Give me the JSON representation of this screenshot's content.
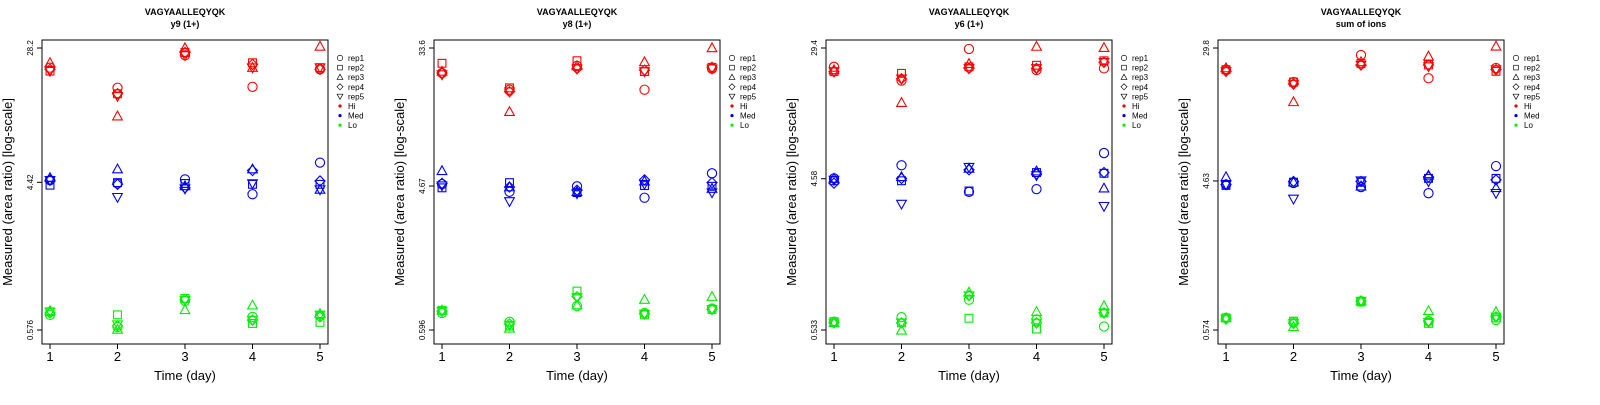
{
  "colors": {
    "Hi": "#ff0000",
    "Med": "#0000ff",
    "Lo": "#00ee00"
  },
  "shared": {
    "xlabel": "Time (day)",
    "ylabel": "Measured (area ratio) [log-scale]",
    "x_ticks": [
      "1",
      "2",
      "3",
      "4",
      "5"
    ],
    "legend": [
      {
        "label": "rep1",
        "symbol": "circle"
      },
      {
        "label": "rep2",
        "symbol": "square"
      },
      {
        "label": "rep3",
        "symbol": "triangle"
      },
      {
        "label": "rep4",
        "symbol": "diamond"
      },
      {
        "label": "rep5",
        "symbol": "triangle-down"
      },
      {
        "label": "Hi",
        "symbol": "dot",
        "color": "Hi"
      },
      {
        "label": "Med",
        "symbol": "dot",
        "color": "Med"
      },
      {
        "label": "Lo",
        "symbol": "dot",
        "color": "Lo"
      }
    ]
  },
  "chart_data": [
    {
      "type": "scatter",
      "title": "VAGYAALLEQYQK",
      "subtitle": "y9 (1+)",
      "xlabel": "Time (day)",
      "ylabel": "Measured (area ratio) [log-scale]",
      "log_scale_y": true,
      "ylim": [
        0.576,
        28.2
      ],
      "y_ticks": [
        "28.2",
        "4.42",
        "0.576"
      ],
      "xlim": [
        1,
        5
      ],
      "legend_position": "right",
      "series": [
        {
          "name": "rep1",
          "level": "Hi",
          "values": [
            21.5,
            16.3,
            25.5,
            16.5,
            21.0
          ]
        },
        {
          "name": "rep2",
          "level": "Hi",
          "values": [
            20.5,
            15.0,
            26.5,
            23.0,
            21.5
          ]
        },
        {
          "name": "rep3",
          "level": "Hi",
          "values": [
            23.0,
            11.0,
            28.2,
            21.5,
            28.8
          ]
        },
        {
          "name": "rep4",
          "level": "Hi",
          "values": [
            21.0,
            15.0,
            26.5,
            22.5,
            21.0
          ]
        },
        {
          "name": "rep5",
          "level": "Hi",
          "values": [
            20.5,
            14.5,
            25.5,
            21.5,
            21.5
          ]
        },
        {
          "name": "rep1",
          "level": "Med",
          "values": [
            4.55,
            4.35,
            4.6,
            3.75,
            5.8
          ]
        },
        {
          "name": "rep2",
          "level": "Med",
          "values": [
            4.25,
            4.4,
            4.35,
            4.3,
            4.3
          ]
        },
        {
          "name": "rep3",
          "level": "Med",
          "values": [
            4.7,
            5.3,
            4.2,
            5.3,
            4.0
          ]
        },
        {
          "name": "rep4",
          "level": "Med",
          "values": [
            4.55,
            4.3,
            4.1,
            5.2,
            4.5
          ]
        },
        {
          "name": "rep5",
          "level": "Med",
          "values": [
            4.55,
            3.6,
            4.05,
            4.35,
            4.0
          ]
        },
        {
          "name": "rep1",
          "level": "Lo",
          "values": [
            0.71,
            0.6,
            0.86,
            0.69,
            0.7
          ]
        },
        {
          "name": "rep2",
          "level": "Lo",
          "values": [
            0.74,
            0.71,
            0.89,
            0.63,
            0.64
          ]
        },
        {
          "name": "rep3",
          "level": "Lo",
          "values": [
            0.75,
            0.58,
            0.76,
            0.81,
            0.72
          ]
        },
        {
          "name": "rep4",
          "level": "Lo",
          "values": [
            0.73,
            0.61,
            0.88,
            0.66,
            0.69
          ]
        },
        {
          "name": "rep5",
          "level": "Lo",
          "values": [
            0.74,
            0.62,
            0.87,
            0.66,
            0.71
          ]
        }
      ]
    },
    {
      "type": "scatter",
      "title": "VAGYAALLEQYQK",
      "subtitle": "y8 (1+)",
      "xlabel": "Time (day)",
      "ylabel": "Measured (area ratio) [log-scale]",
      "log_scale_y": true,
      "ylim": [
        0.596,
        33.6
      ],
      "y_ticks": [
        "33.6",
        "4.67",
        "0.596"
      ],
      "xlim": [
        1,
        5
      ],
      "legend_position": "right",
      "series": [
        {
          "name": "rep1",
          "level": "Hi",
          "values": [
            23.5,
            18.5,
            26.0,
            18.5,
            25.0
          ]
        },
        {
          "name": "rep2",
          "level": "Hi",
          "values": [
            27.0,
            19.0,
            28.0,
            24.0,
            25.5
          ]
        },
        {
          "name": "rep3",
          "level": "Hi",
          "values": [
            24.0,
            13.5,
            26.0,
            27.5,
            33.6
          ]
        },
        {
          "name": "rep4",
          "level": "Hi",
          "values": [
            23.5,
            18.0,
            25.0,
            24.5,
            25.5
          ]
        },
        {
          "name": "rep5",
          "level": "Hi",
          "values": [
            23.0,
            18.0,
            25.0,
            24.0,
            25.0
          ]
        },
        {
          "name": "rep1",
          "level": "Med",
          "values": [
            4.8,
            4.3,
            4.65,
            3.95,
            5.6
          ]
        },
        {
          "name": "rep2",
          "level": "Med",
          "values": [
            4.55,
            4.9,
            4.25,
            4.7,
            4.65
          ]
        },
        {
          "name": "rep3",
          "level": "Med",
          "values": [
            5.8,
            4.6,
            4.3,
            5.0,
            4.5
          ]
        },
        {
          "name": "rep4",
          "level": "Med",
          "values": [
            4.85,
            4.6,
            4.4,
            5.1,
            4.9
          ]
        },
        {
          "name": "rep5",
          "level": "Med",
          "values": [
            4.7,
            3.75,
            4.2,
            4.8,
            4.25
          ]
        },
        {
          "name": "rep1",
          "level": "Lo",
          "values": [
            0.76,
            0.67,
            0.84,
            0.76,
            0.81
          ]
        },
        {
          "name": "rep2",
          "level": "Lo",
          "values": [
            0.79,
            0.63,
            1.04,
            0.74,
            0.8
          ]
        },
        {
          "name": "rep3",
          "level": "Lo",
          "values": [
            0.79,
            0.61,
            0.85,
            0.92,
            0.96
          ]
        },
        {
          "name": "rep4",
          "level": "Lo",
          "values": [
            0.78,
            0.65,
            0.96,
            0.75,
            0.8
          ]
        },
        {
          "name": "rep5",
          "level": "Lo",
          "values": [
            0.78,
            0.64,
            0.95,
            0.75,
            0.8
          ]
        }
      ]
    },
    {
      "type": "scatter",
      "title": "VAGYAALLEQYQK",
      "subtitle": "y6 (1+)",
      "xlabel": "Time (day)",
      "ylabel": "Measured (area ratio) [log-scale]",
      "log_scale_y": true,
      "ylim": [
        0.533,
        29.4
      ],
      "y_ticks": [
        "29.4",
        "4.58",
        "0.533"
      ],
      "xlim": [
        1,
        5
      ],
      "legend_position": "right",
      "series": [
        {
          "name": "rep1",
          "level": "Hi",
          "values": [
            22.5,
            18.5,
            29.0,
            21.5,
            22.0
          ]
        },
        {
          "name": "rep2",
          "level": "Hi",
          "values": [
            21.0,
            20.5,
            22.5,
            23.0,
            24.5
          ]
        },
        {
          "name": "rep3",
          "level": "Hi",
          "values": [
            21.5,
            13.5,
            23.5,
            30.0,
            29.5
          ]
        },
        {
          "name": "rep4",
          "level": "Hi",
          "values": [
            21.0,
            19.0,
            22.0,
            22.0,
            24.0
          ]
        },
        {
          "name": "rep5",
          "level": "Hi",
          "values": [
            21.0,
            19.0,
            22.0,
            22.0,
            24.0
          ]
        },
        {
          "name": "rep1",
          "level": "Med",
          "values": [
            4.6,
            5.55,
            3.8,
            3.95,
            6.6
          ]
        },
        {
          "name": "rep2",
          "level": "Med",
          "values": [
            4.45,
            4.45,
            3.85,
            5.0,
            4.95
          ]
        },
        {
          "name": "rep3",
          "level": "Med",
          "values": [
            4.6,
            4.7,
            5.3,
            5.1,
            4.0
          ]
        },
        {
          "name": "rep4",
          "level": "Med",
          "values": [
            4.3,
            4.6,
            5.2,
            4.9,
            5.0
          ]
        },
        {
          "name": "rep5",
          "level": "Med",
          "values": [
            4.5,
            3.2,
            5.4,
            4.8,
            3.1
          ]
        },
        {
          "name": "rep1",
          "level": "Lo",
          "values": [
            0.6,
            0.64,
            0.82,
            0.62,
            0.56
          ]
        },
        {
          "name": "rep2",
          "level": "Lo",
          "values": [
            0.6,
            0.59,
            0.63,
            0.54,
            0.68
          ]
        },
        {
          "name": "rep3",
          "level": "Lo",
          "values": [
            0.59,
            0.53,
            0.91,
            0.69,
            0.75
          ]
        },
        {
          "name": "rep4",
          "level": "Lo",
          "values": [
            0.59,
            0.59,
            0.87,
            0.59,
            0.68
          ]
        },
        {
          "name": "rep5",
          "level": "Lo",
          "values": [
            0.59,
            0.59,
            0.87,
            0.59,
            0.68
          ]
        }
      ]
    },
    {
      "type": "scatter",
      "title": "VAGYAALLEQYQK",
      "subtitle": "sum of ions",
      "xlabel": "Time (day)",
      "ylabel": "Measured (area ratio) [log-scale]",
      "log_scale_y": true,
      "ylim": [
        0.574,
        29.8
      ],
      "y_ticks": [
        "29.8",
        "4.63",
        "0.574"
      ],
      "xlim": [
        1,
        5
      ],
      "legend_position": "right",
      "series": [
        {
          "name": "rep1",
          "level": "Hi",
          "values": [
            22.0,
            18.5,
            27.0,
            19.5,
            22.5
          ]
        },
        {
          "name": "rep2",
          "level": "Hi",
          "values": [
            22.0,
            18.5,
            24.0,
            23.5,
            21.5
          ]
        },
        {
          "name": "rep3",
          "level": "Hi",
          "values": [
            22.5,
            14.0,
            24.5,
            26.5,
            30.5
          ]
        },
        {
          "name": "rep4",
          "level": "Hi",
          "values": [
            21.5,
            18.0,
            23.5,
            23.5,
            22.0
          ]
        },
        {
          "name": "rep5",
          "level": "Hi",
          "values": [
            21.5,
            18.0,
            23.5,
            23.0,
            22.0
          ]
        },
        {
          "name": "rep1",
          "level": "Med",
          "values": [
            4.4,
            4.5,
            4.25,
            3.9,
            5.7
          ]
        },
        {
          "name": "rep2",
          "level": "Med",
          "values": [
            4.35,
            4.55,
            4.55,
            4.8,
            4.8
          ]
        },
        {
          "name": "rep3",
          "level": "Med",
          "values": [
            4.9,
            4.55,
            4.3,
            5.0,
            4.2
          ]
        },
        {
          "name": "rep4",
          "level": "Med",
          "values": [
            4.4,
            4.6,
            4.6,
            4.9,
            4.7
          ]
        },
        {
          "name": "rep5",
          "level": "Med",
          "values": [
            4.4,
            3.6,
            4.65,
            4.6,
            3.9
          ]
        },
        {
          "name": "rep1",
          "level": "Lo",
          "values": [
            0.68,
            0.64,
            0.86,
            0.65,
            0.66
          ]
        },
        {
          "name": "rep2",
          "level": "Lo",
          "values": [
            0.68,
            0.65,
            0.85,
            0.63,
            0.68
          ]
        },
        {
          "name": "rep3",
          "level": "Lo",
          "values": [
            0.68,
            0.6,
            0.86,
            0.75,
            0.74
          ]
        },
        {
          "name": "rep4",
          "level": "Lo",
          "values": [
            0.67,
            0.63,
            0.86,
            0.65,
            0.69
          ]
        },
        {
          "name": "rep5",
          "level": "Lo",
          "values": [
            0.67,
            0.63,
            0.86,
            0.64,
            0.69
          ]
        }
      ]
    }
  ]
}
